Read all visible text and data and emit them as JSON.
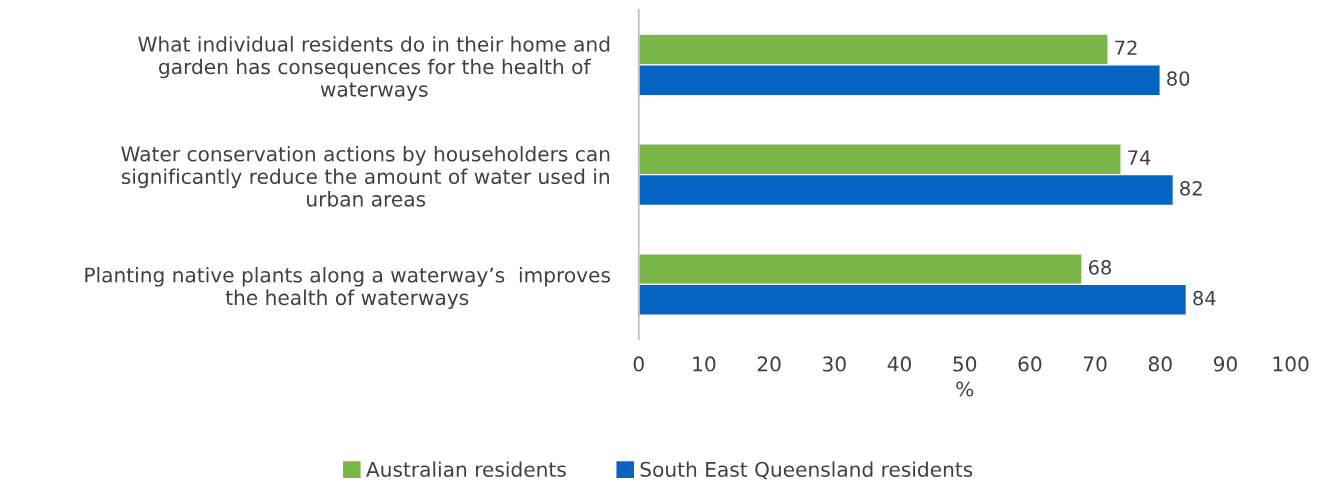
{
  "chart_data": {
    "type": "bar",
    "orientation": "horizontal",
    "xlabel": "%",
    "categories": [
      "What individual residents do in their home and\ngarden has consequences for the health of\nwaterways",
      "Water conservation actions by householders can\nsignificantly reduce the amount of water used in\nurban areas",
      "Planting native plants along a waterway’s  improves\nthe health of waterways"
    ],
    "series": [
      {
        "name": "Australian residents",
        "color": "#7ab648",
        "values": [
          72,
          74,
          68
        ]
      },
      {
        "name": "South East Queensland residents",
        "color": "#0563c1",
        "values": [
          80,
          82,
          84
        ]
      }
    ],
    "xlim": [
      0,
      100
    ],
    "xticks": [
      0,
      10,
      20,
      30,
      40,
      50,
      60,
      70,
      80,
      90,
      100
    ],
    "data_labels": true,
    "grid": false,
    "legend": "bottom"
  }
}
